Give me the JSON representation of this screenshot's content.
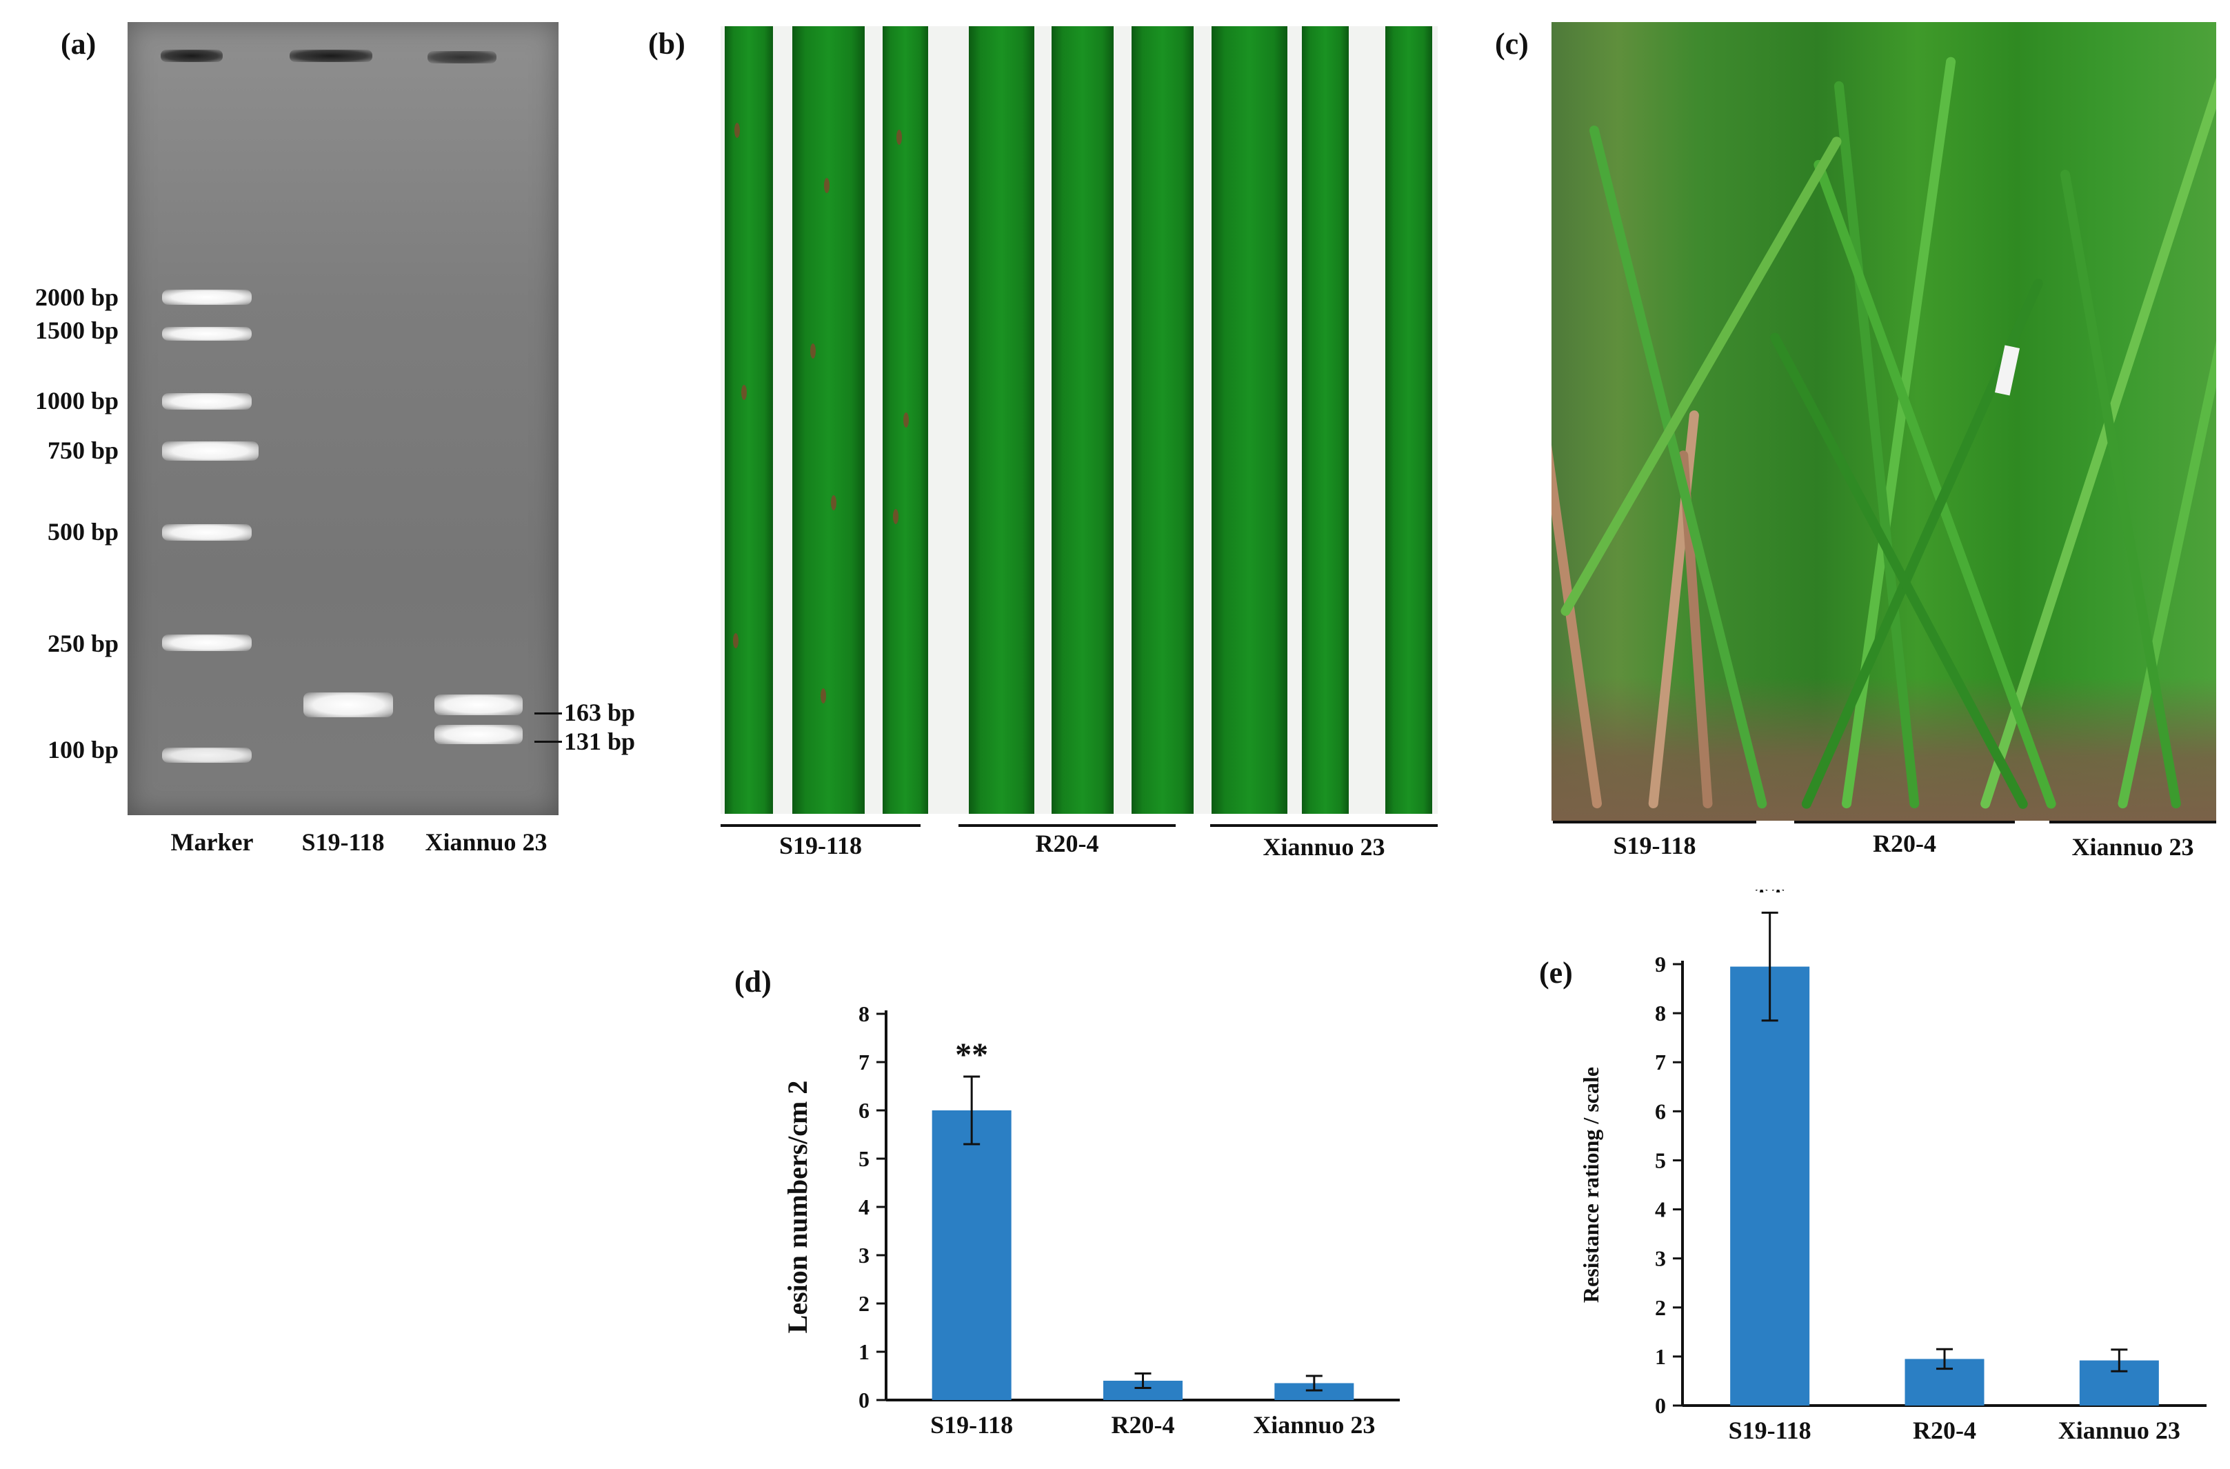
{
  "panels": {
    "a": {
      "letter": "(a)",
      "marker_labels": [
        "2000 bp",
        "1500 bp",
        "1000 bp",
        "750 bp",
        "500 bp",
        "250 bp",
        "100 bp"
      ],
      "band_labels": [
        "163 bp",
        "131 bp"
      ],
      "lane_labels": [
        "Marker",
        "S19-118",
        "Xiannuo 23"
      ]
    },
    "b": {
      "letter": "(b)",
      "group_labels": [
        "S19-118",
        "R20-4",
        "Xiannuo 23"
      ]
    },
    "c": {
      "letter": "(c)",
      "group_labels": [
        "S19-118",
        "R20-4",
        "Xiannuo 23"
      ]
    },
    "d": {
      "letter": "(d)"
    },
    "e": {
      "letter": "(e)"
    }
  },
  "chart_data": [
    {
      "panel": "d",
      "type": "bar",
      "categories": [
        "S19-118",
        "R20-4",
        "Xiannuo 23"
      ],
      "values": [
        6.0,
        0.4,
        0.35
      ],
      "error": [
        0.7,
        0.15,
        0.15
      ],
      "significance": [
        "**",
        "",
        ""
      ],
      "ylabel": "Lesion numbers/cm 2",
      "ylim": [
        0,
        8
      ],
      "yticks": [
        0,
        1,
        2,
        3,
        4,
        5,
        6,
        7,
        8
      ],
      "bar_color": "#2b7fc4"
    },
    {
      "panel": "e",
      "type": "bar",
      "categories": [
        "S19-118",
        "R20-4",
        "Xiannuo 23"
      ],
      "values": [
        8.95,
        0.95,
        0.92
      ],
      "error": [
        1.1,
        0.2,
        0.22
      ],
      "significance": [
        "**",
        "",
        ""
      ],
      "ylabel": "Resistance rationg / scale",
      "ylim": [
        0,
        9
      ],
      "yticks": [
        0,
        1,
        2,
        3,
        4,
        5,
        6,
        7,
        8,
        9
      ],
      "bar_color": "#2b7fc4"
    }
  ]
}
